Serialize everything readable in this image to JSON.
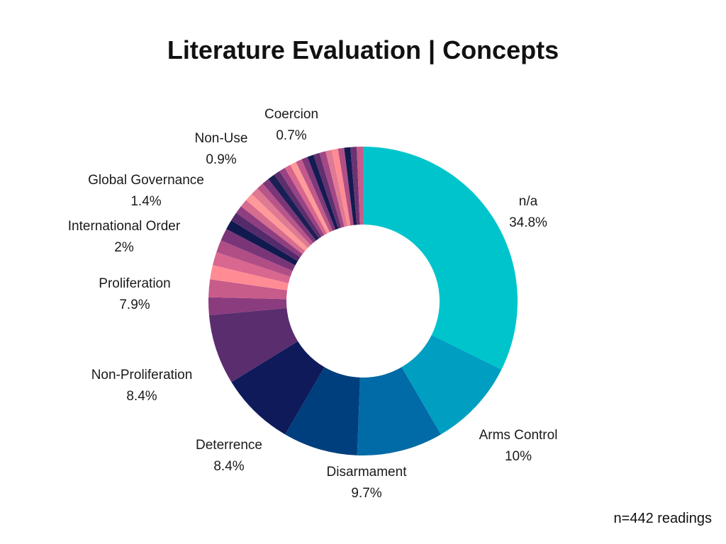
{
  "title": "Literature Evaluation | Concepts",
  "footnote": "n=442 readings",
  "chart_data": {
    "type": "donut",
    "title": "Literature Evaluation | Concepts",
    "slices": [
      {
        "label": "n/a",
        "pct_text": "34.8%",
        "value": 34.8,
        "color": "#00C4CC"
      },
      {
        "label": "Arms Control",
        "pct_text": "10%",
        "value": 10.0,
        "color": "#009FC2"
      },
      {
        "label": "Disarmament",
        "pct_text": "9.7%",
        "value": 9.7,
        "color": "#006BA6"
      },
      {
        "label": "Deterrence",
        "pct_text": "8.4%",
        "value": 8.4,
        "color": "#003F7D"
      },
      {
        "label": "Non-Proliferation",
        "pct_text": "8.4%",
        "value": 8.4,
        "color": "#0E1A5A"
      },
      {
        "label": "Proliferation",
        "pct_text": "7.9%",
        "value": 7.9,
        "color": "#5A2D6E"
      },
      {
        "label": "",
        "pct_text": "",
        "value": 2.0,
        "color": "#8B3C7E"
      },
      {
        "label": "International Order",
        "pct_text": "2%",
        "value": 2.0,
        "color": "#C75B8A"
      },
      {
        "label": "",
        "pct_text": "",
        "value": 1.6,
        "color": "#FF8C94"
      },
      {
        "label": "",
        "pct_text": "",
        "value": 1.5,
        "color": "#D9678F"
      },
      {
        "label": "",
        "pct_text": "",
        "value": 1.4,
        "color": "#B14E86"
      },
      {
        "label": "Global Governance",
        "pct_text": "1.4%",
        "value": 1.4,
        "color": "#7A3579"
      },
      {
        "label": "",
        "pct_text": "",
        "value": 1.1,
        "color": "#111A4F"
      },
      {
        "label": "",
        "pct_text": "",
        "value": 1.0,
        "color": "#552A6B"
      },
      {
        "label": "",
        "pct_text": "",
        "value": 0.9,
        "color": "#8F3F80"
      },
      {
        "label": "",
        "pct_text": "",
        "value": 0.9,
        "color": "#D66D8F"
      },
      {
        "label": "",
        "pct_text": "",
        "value": 0.9,
        "color": "#FF9A9A"
      },
      {
        "label": "Non-Use",
        "pct_text": "0.9%",
        "value": 0.9,
        "color": "#E07A93"
      },
      {
        "label": "",
        "pct_text": "",
        "value": 0.8,
        "color": "#B8558A"
      },
      {
        "label": "",
        "pct_text": "",
        "value": 0.8,
        "color": "#7C3678"
      },
      {
        "label": "",
        "pct_text": "",
        "value": 0.8,
        "color": "#1A1F55"
      },
      {
        "label": "",
        "pct_text": "",
        "value": 0.7,
        "color": "#5C2E6C"
      },
      {
        "label": "",
        "pct_text": "",
        "value": 0.7,
        "color": "#994285"
      },
      {
        "label": "",
        "pct_text": "",
        "value": 0.7,
        "color": "#D9668E"
      },
      {
        "label": "",
        "pct_text": "",
        "value": 0.7,
        "color": "#FF9B98"
      },
      {
        "label": "",
        "pct_text": "",
        "value": 0.7,
        "color": "#C2598B"
      },
      {
        "label": "",
        "pct_text": "",
        "value": 0.7,
        "color": "#7F3879"
      },
      {
        "label": "",
        "pct_text": "",
        "value": 0.7,
        "color": "#141B52"
      },
      {
        "label": "",
        "pct_text": "",
        "value": 0.7,
        "color": "#62306F"
      },
      {
        "label": "",
        "pct_text": "",
        "value": 0.7,
        "color": "#A34887"
      },
      {
        "label": "",
        "pct_text": "",
        "value": 0.7,
        "color": "#E07A93"
      },
      {
        "label": "",
        "pct_text": "",
        "value": 0.7,
        "color": "#FF8C94"
      },
      {
        "label": "",
        "pct_text": "",
        "value": 0.7,
        "color": "#B14E86"
      },
      {
        "label": "",
        "pct_text": "",
        "value": 0.7,
        "color": "#121A50"
      },
      {
        "label": "",
        "pct_text": "",
        "value": 0.7,
        "color": "#6A3372"
      },
      {
        "label": "Coercion",
        "pct_text": "0.7%",
        "value": 0.7,
        "color": "#C75B8A"
      }
    ]
  }
}
